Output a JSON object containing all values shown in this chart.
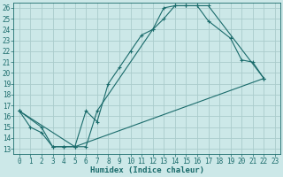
{
  "xlabel": "Humidex (Indice chaleur)",
  "xlim": [
    -0.5,
    23.5
  ],
  "ylim": [
    12.5,
    26.5
  ],
  "xticks": [
    0,
    1,
    2,
    3,
    4,
    5,
    6,
    7,
    8,
    9,
    10,
    11,
    12,
    13,
    14,
    15,
    16,
    17,
    18,
    19,
    20,
    21,
    22,
    23
  ],
  "yticks": [
    13,
    14,
    15,
    16,
    17,
    18,
    19,
    20,
    21,
    22,
    23,
    24,
    25,
    26
  ],
  "bg_color": "#cce8e8",
  "grid_color": "#aacccc",
  "line_color": "#1a6b6b",
  "curve1_x": [
    0,
    1,
    2,
    3,
    4,
    5,
    6,
    7,
    8,
    9,
    10,
    11,
    12,
    13,
    14,
    15,
    16,
    17,
    22
  ],
  "curve1_y": [
    16.5,
    15.0,
    14.5,
    13.2,
    13.2,
    13.2,
    16.5,
    15.5,
    19.0,
    20.5,
    22.0,
    23.5,
    24.0,
    25.0,
    26.2,
    26.2,
    26.2,
    26.2,
    19.5
  ],
  "curve2_x": [
    0,
    2,
    3,
    4,
    5,
    6,
    7,
    12,
    13,
    14,
    15,
    16,
    17,
    19,
    20,
    21,
    22
  ],
  "curve2_y": [
    16.5,
    15.0,
    13.2,
    13.2,
    13.2,
    13.2,
    16.5,
    24.0,
    26.0,
    26.2,
    26.2,
    26.2,
    24.8,
    23.2,
    21.2,
    21.0,
    19.5
  ],
  "curve3_x": [
    0,
    5,
    22
  ],
  "curve3_y": [
    16.5,
    13.2,
    19.5
  ],
  "tick_fontsize": 5.5,
  "xlabel_fontsize": 6.5
}
